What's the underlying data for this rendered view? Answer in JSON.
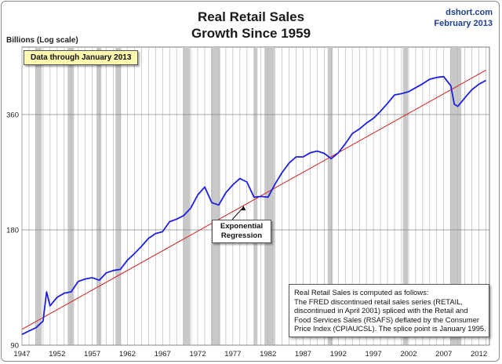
{
  "header": {
    "title_line1": "Real Retail Sales",
    "title_line2": "Growth Since 1959",
    "source_line1": "dshort.com",
    "source_line2": "February 2013"
  },
  "chart_data": {
    "type": "line",
    "title": "Real Retail Sales Growth Since 1959",
    "ylabel": "Billions (Log scale)",
    "y_scale": "log",
    "xlim": [
      1947,
      2013.5
    ],
    "ylim": [
      90,
      540
    ],
    "y_ticks": [
      90,
      180,
      360
    ],
    "x_ticks": [
      1947,
      1952,
      1957,
      1962,
      1967,
      1972,
      1977,
      1982,
      1987,
      1992,
      1997,
      2002,
      2007,
      2012
    ],
    "grid": true,
    "recessions": [
      [
        1948.9,
        1949.8
      ],
      [
        1953.5,
        1954.4
      ],
      [
        1957.6,
        1958.3
      ],
      [
        1960.3,
        1961.1
      ],
      [
        1969.9,
        1970.9
      ],
      [
        1973.9,
        1975.2
      ],
      [
        1980.0,
        1980.5
      ],
      [
        1981.5,
        1982.9
      ],
      [
        1990.5,
        1991.2
      ],
      [
        2001.2,
        2001.9
      ],
      [
        2007.9,
        2009.5
      ]
    ],
    "series": [
      {
        "name": "Real Retail Sales",
        "color": "#1f1fe0",
        "x": [
          1947,
          1948,
          1949,
          1950,
          1950.5,
          1951,
          1952,
          1953,
          1954,
          1955,
          1956,
          1957,
          1958,
          1959,
          1960,
          1961,
          1962,
          1963,
          1964,
          1965,
          1966,
          1967,
          1968,
          1969,
          1970,
          1971,
          1972,
          1973,
          1974,
          1975,
          1976,
          1977,
          1978,
          1979,
          1980,
          1981,
          1982,
          1983,
          1984,
          1985,
          1986,
          1987,
          1988,
          1989,
          1990,
          1991,
          1992,
          1993,
          1994,
          1995,
          1996,
          1997,
          1998,
          1999,
          2000,
          2001,
          2002,
          2003,
          2004,
          2005,
          2006,
          2007,
          2008,
          2008.5,
          2009,
          2010,
          2011,
          2012,
          2013
        ],
        "values": [
          96,
          98,
          100,
          104,
          124,
          114,
          120,
          123,
          124,
          132,
          134,
          135,
          133,
          139,
          141,
          142,
          150,
          156,
          163,
          171,
          176,
          178,
          189,
          192,
          196,
          205,
          222,
          233,
          212,
          209,
          225,
          236,
          245,
          240,
          219,
          220,
          219,
          237,
          254,
          269,
          279,
          279,
          286,
          289,
          285,
          276,
          286,
          302,
          321,
          330,
          342,
          352,
          367,
          385,
          405,
          408,
          413,
          423,
          433,
          445,
          450,
          452,
          428,
          383,
          378,
          398,
          418,
          432,
          442
        ]
      },
      {
        "name": "Exponential Regression",
        "color": "#d02020",
        "x": [
          1947,
          2013
        ],
        "values": [
          99,
          470
        ]
      }
    ],
    "annotations": [
      "Data through January 2013",
      "Exponential Regression"
    ]
  },
  "annotations": {
    "date_label": "Data through January 2013",
    "regression_line1": "Exponential",
    "regression_line2": "Regression",
    "note_lines": [
      "Real Retail Sales is computed as follows:",
      "The FRED discontinued retail sales series (RETAIL,",
      "discontinued in April 2001) spliced with the Retail and",
      "Food Services Sales (RSAFS) deflated by the Consumer",
      "Price Index (CPIAUCSL). The splice point is January 1995."
    ]
  }
}
